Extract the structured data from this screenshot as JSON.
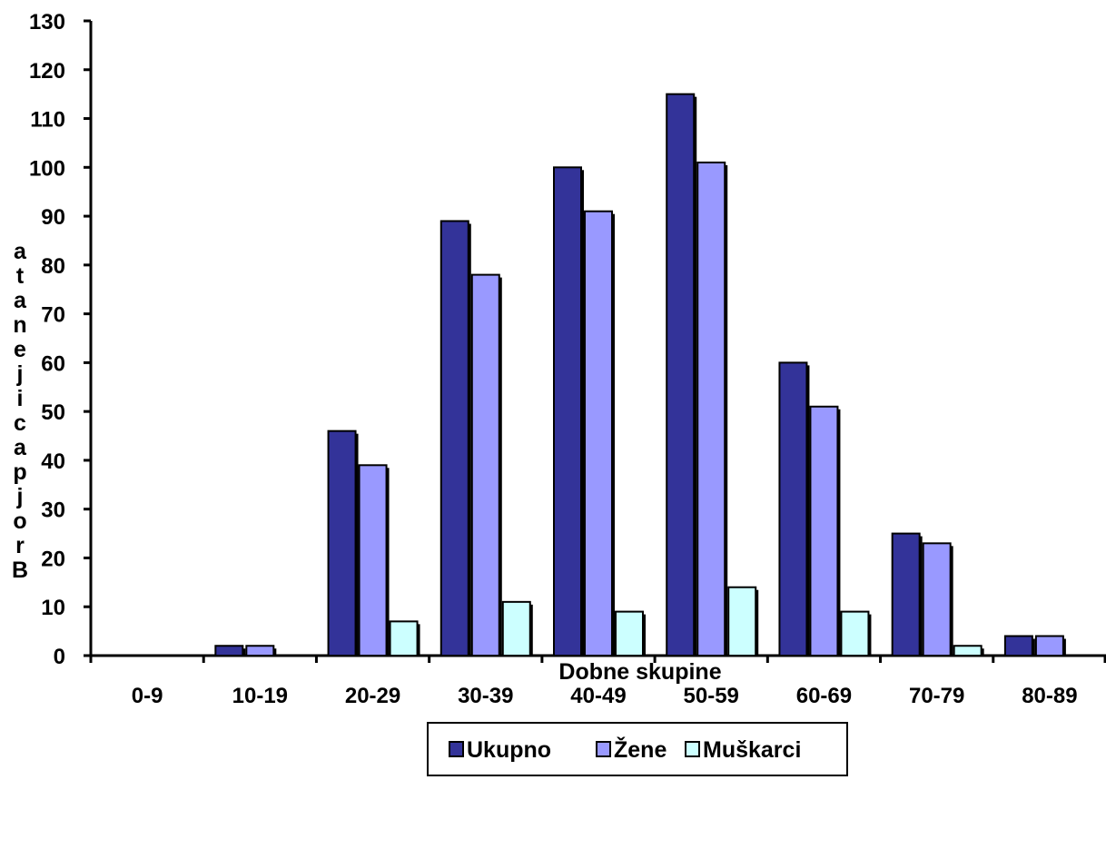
{
  "chart_data": {
    "type": "bar",
    "title": "",
    "xlabel": "Dobne skupine",
    "ylabel": "Broj pacijenata",
    "ylim": [
      0,
      130
    ],
    "ytick_step": 10,
    "grid": false,
    "legend_position": "bottom",
    "categories": [
      "0-9",
      "10-19",
      "20-29",
      "30-39",
      "40-49",
      "50-59",
      "60-69",
      "70-79",
      "80-89"
    ],
    "series": [
      {
        "name": "Ukupno",
        "color": "#333399",
        "values": [
          0,
          2,
          46,
          89,
          100,
          115,
          60,
          25,
          4
        ]
      },
      {
        "name": "Žene",
        "color": "#9999FF",
        "values": [
          0,
          2,
          39,
          78,
          91,
          101,
          51,
          23,
          4
        ]
      },
      {
        "name": "Muškarci",
        "color": "#CCFFFF",
        "values": [
          0,
          0,
          7,
          11,
          9,
          14,
          9,
          2,
          0
        ]
      }
    ]
  }
}
